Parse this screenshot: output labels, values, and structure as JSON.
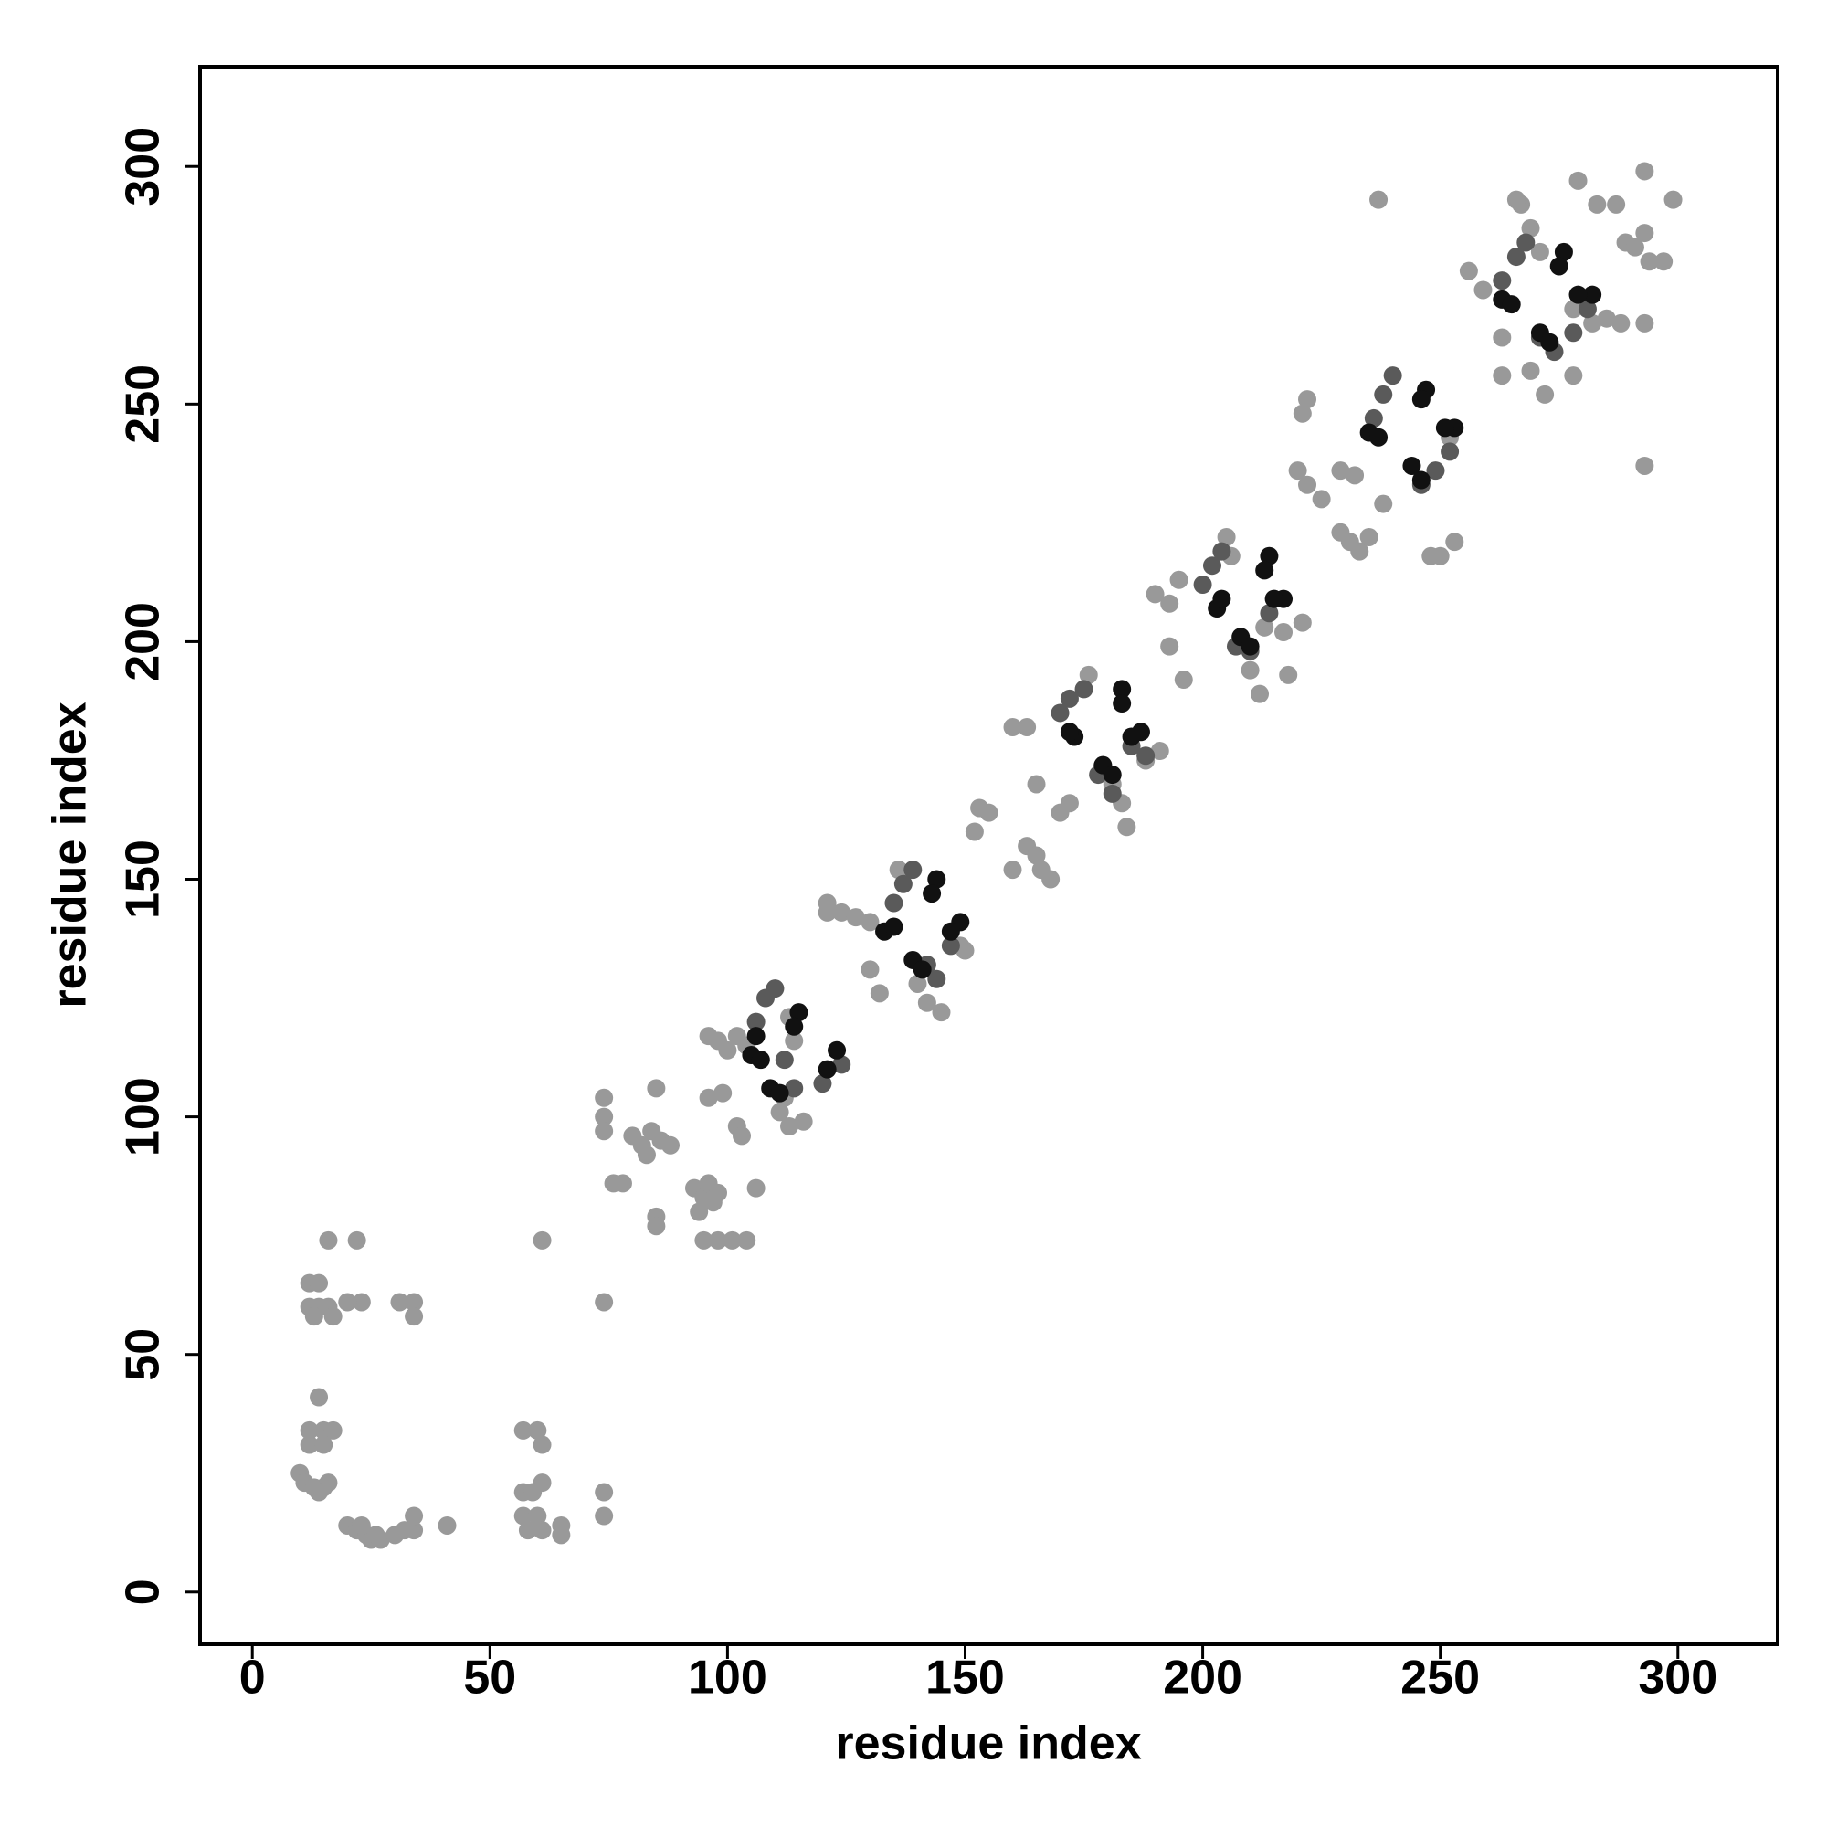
{
  "chart_data": {
    "type": "scatter",
    "xlabel": "residue index",
    "ylabel": "residue index",
    "xlim": [
      -11,
      321
    ],
    "ylim": [
      -11,
      321
    ],
    "xticks": [
      0,
      50,
      100,
      150,
      200,
      250,
      300
    ],
    "yticks": [
      0,
      50,
      100,
      150,
      200,
      250,
      300
    ],
    "grid": false,
    "series": [
      {
        "color": "#999999",
        "x": [
          12,
          14,
          12,
          14,
          16,
          13,
          17,
          16,
          22,
          23,
          20,
          31,
          34,
          34,
          14,
          12,
          15,
          17,
          12,
          15,
          10,
          11,
          13,
          15,
          16,
          14,
          20,
          22,
          24,
          25,
          27,
          23,
          26,
          30,
          32,
          34,
          34,
          41,
          57,
          60,
          61,
          61,
          57,
          59,
          57,
          60,
          61,
          58,
          65,
          65,
          61,
          74,
          74,
          74,
          74,
          74,
          74,
          76,
          78,
          85,
          80,
          82,
          84,
          86,
          88,
          83,
          85,
          85,
          93,
          95,
          97,
          94,
          96,
          98,
          95,
          98,
          101,
          104,
          106,
          102,
          103,
          96,
          99,
          96,
          98,
          100,
          102,
          104,
          111,
          113,
          116,
          112,
          113,
          114,
          130,
          132,
          121,
          121,
          124,
          127,
          130,
          140,
          142,
          145,
          136,
          149,
          150,
          153,
          155,
          152,
          160,
          163,
          165,
          163,
          165,
          166,
          168,
          160,
          172,
          170,
          176,
          179,
          181,
          183,
          184,
          191,
          188,
          193,
          196,
          190,
          193,
          195,
          205,
          206,
          213,
          210,
          212,
          217,
          221,
          218,
          221,
          222,
          220,
          222,
          225,
          229,
          232,
          229,
          231,
          233,
          235,
          238,
          237,
          248,
          250,
          253,
          252,
          256,
          259,
          263,
          263,
          271,
          267,
          269,
          266,
          278,
          282,
          285,
          288,
          293,
          279,
          283,
          287,
          289,
          291,
          293,
          294,
          297,
          299,
          293,
          293,
          269,
          272,
          278
        ],
        "y": [
          65,
          65,
          60,
          60,
          60,
          58,
          58,
          74,
          74,
          61,
          61,
          61,
          61,
          58,
          41,
          34,
          34,
          34,
          31,
          31,
          25,
          23,
          22,
          22,
          23,
          21,
          14,
          13,
          12,
          11,
          11,
          14,
          12,
          12,
          13,
          13,
          16,
          14,
          34,
          34,
          31,
          23,
          21,
          21,
          16,
          16,
          13,
          13,
          14,
          12,
          74,
          61,
          21,
          16,
          104,
          100,
          97,
          86,
          86,
          106,
          96,
          94,
          97,
          95,
          94,
          92,
          79,
          77,
          85,
          83,
          82,
          80,
          86,
          84,
          74,
          74,
          74,
          74,
          85,
          98,
          96,
          104,
          105,
          117,
          116,
          114,
          117,
          115,
          101,
          98,
          99,
          104,
          121,
          116,
          131,
          126,
          145,
          143,
          143,
          142,
          141,
          128,
          124,
          122,
          152,
          136,
          135,
          165,
          164,
          160,
          182,
          182,
          170,
          157,
          155,
          152,
          150,
          152,
          166,
          164,
          193,
          174,
          170,
          166,
          161,
          177,
          175,
          199,
          192,
          210,
          208,
          213,
          222,
          218,
          203,
          194,
          189,
          202,
          204,
          193,
          248,
          251,
          236,
          233,
          230,
          236,
          235,
          223,
          221,
          219,
          222,
          229,
          293,
          218,
          218,
          221,
          243,
          278,
          274,
          264,
          256,
          282,
          292,
          287,
          293,
          270,
          267,
          268,
          267,
          267,
          297,
          292,
          292,
          284,
          283,
          286,
          280,
          280,
          293,
          299,
          237,
          257,
          252,
          256
        ]
      },
      {
        "color": "#5a5a5a",
        "x": [
          106,
          108,
          110,
          112,
          114,
          120,
          124,
          135,
          137,
          139,
          142,
          144,
          147,
          170,
          172,
          175,
          178,
          181,
          185,
          188,
          200,
          202,
          204,
          207,
          210,
          214,
          236,
          238,
          240,
          246,
          249,
          252,
          263,
          266,
          268,
          271,
          274,
          278,
          281
        ],
        "y": [
          120,
          125,
          127,
          112,
          106,
          107,
          111,
          145,
          149,
          152,
          132,
          129,
          136,
          185,
          188,
          190,
          172,
          168,
          178,
          176,
          212,
          216,
          219,
          199,
          198,
          206,
          247,
          252,
          256,
          233,
          236,
          240,
          276,
          281,
          284,
          264,
          261,
          265,
          270
        ]
      },
      {
        "color": "#111111",
        "x": [
          105,
          107,
          106,
          115,
          114,
          109,
          111,
          123,
          121,
          133,
          135,
          144,
          143,
          139,
          141,
          149,
          147,
          173,
          172,
          183,
          183,
          179,
          181,
          187,
          185,
          203,
          204,
          214,
          213,
          208,
          210,
          217,
          215,
          235,
          237,
          247,
          246,
          244,
          246,
          253,
          251,
          263,
          265,
          276,
          275,
          271,
          273,
          282,
          279
        ],
        "y": [
          113,
          112,
          117,
          122,
          119,
          106,
          105,
          114,
          110,
          139,
          140,
          150,
          147,
          133,
          131,
          141,
          139,
          180,
          181,
          190,
          187,
          174,
          172,
          181,
          180,
          207,
          209,
          218,
          215,
          201,
          199,
          209,
          209,
          244,
          243,
          253,
          251,
          237,
          234,
          245,
          245,
          272,
          271,
          282,
          279,
          265,
          263,
          273,
          273
        ]
      }
    ]
  }
}
